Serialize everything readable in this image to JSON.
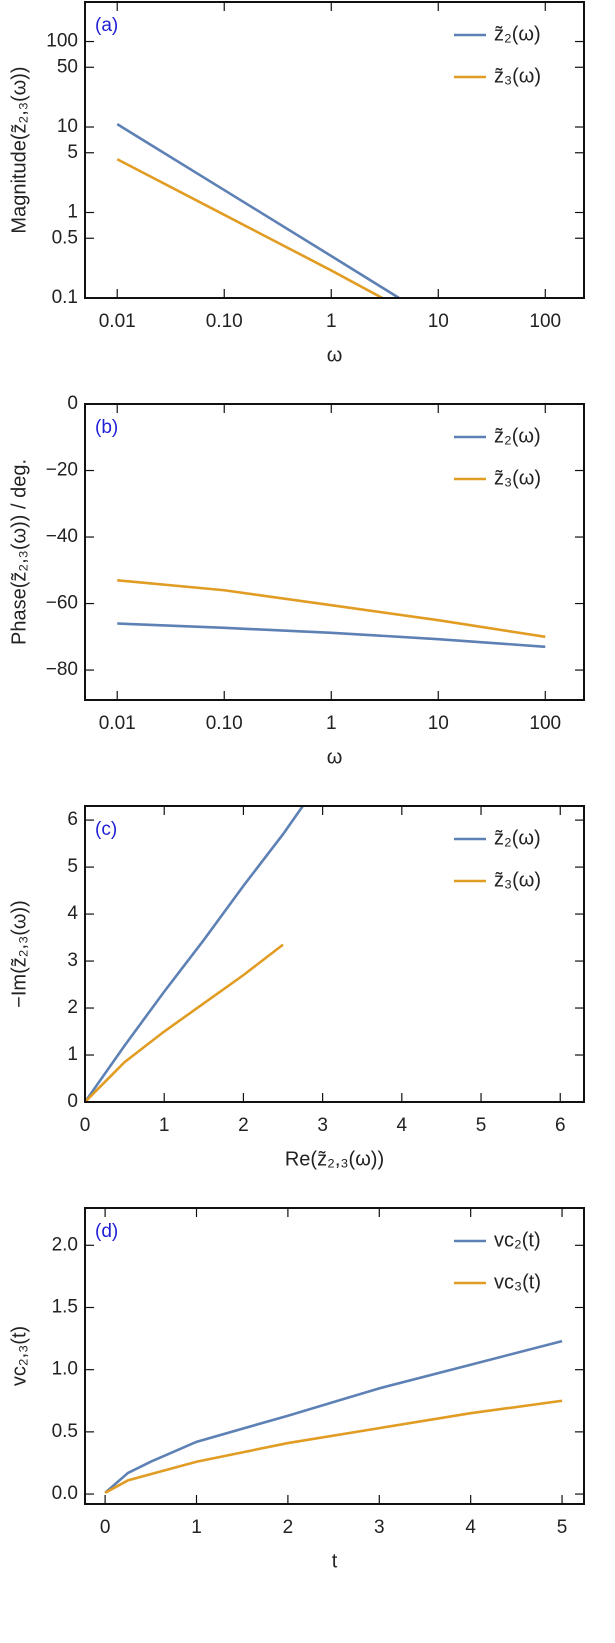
{
  "chart_data": [
    {
      "type": "line",
      "panel_label": "(a)",
      "xlabel": "ω",
      "ylabel": "Magnitude(z̃₂,₃(ω))",
      "xscale": "log",
      "yscale": "log",
      "xlim": [
        0.005,
        230
      ],
      "ylim": [
        0.1,
        290
      ],
      "xticks": [
        0.01,
        {
          "value": 0.1,
          "label": "0.10"
        },
        1,
        10,
        100
      ],
      "yticks": [
        0.1,
        0.5,
        1,
        5,
        10,
        50,
        100
      ],
      "legend": "upper right",
      "series": [
        {
          "name": "z̃₂(ω)",
          "color": "#5e81b5",
          "x": [
            0.01,
            0.1,
            1,
            4.3
          ],
          "values": [
            10.8,
            1.83,
            0.31,
            0.1
          ]
        },
        {
          "name": "z̃₃(ω)",
          "color": "#e19c24",
          "x": [
            0.01,
            0.1,
            1,
            3
          ],
          "values": [
            4.2,
            0.94,
            0.21,
            0.1
          ]
        }
      ]
    },
    {
      "type": "line",
      "panel_label": "(b)",
      "xlabel": "ω",
      "ylabel": "Phase(z̃₂,₃(ω)) / deg.",
      "xscale": "log",
      "yscale": "linear",
      "xlim": [
        0.005,
        230
      ],
      "ylim": [
        -89,
        0
      ],
      "xticks": [
        0.01,
        {
          "value": 0.1,
          "label": "0.10"
        },
        1,
        10,
        100
      ],
      "yticks": [
        {
          "value": -80,
          "label": "−80"
        },
        {
          "value": -60,
          "label": "−60"
        },
        {
          "value": -40,
          "label": "−40"
        },
        {
          "value": -20,
          "label": "−20"
        },
        0
      ],
      "legend": "upper right",
      "series": [
        {
          "name": "z̃₂(ω)",
          "color": "#5e81b5",
          "x": [
            0.01,
            0.1,
            1,
            10,
            100
          ],
          "values": [
            -66,
            -67.3,
            -68.8,
            -70.7,
            -73
          ]
        },
        {
          "name": "z̃₃(ω)",
          "color": "#e19c24",
          "x": [
            0.01,
            0.1,
            1,
            10,
            100
          ],
          "values": [
            -53,
            -56,
            -60.5,
            -65,
            -70
          ]
        }
      ]
    },
    {
      "type": "line",
      "panel_label": "(c)",
      "xlabel": "Re(z̃₂,₃(ω))",
      "ylabel": "−Im(z̃₂,₃(ω))",
      "xscale": "linear",
      "yscale": "linear",
      "xlim": [
        0,
        6.3
      ],
      "ylim": [
        0,
        6.3
      ],
      "xticks": [
        0,
        1,
        2,
        3,
        4,
        5,
        6
      ],
      "yticks": [
        0,
        1,
        2,
        3,
        4,
        5,
        6
      ],
      "legend": "upper right",
      "series": [
        {
          "name": "z̃₂(ω)",
          "color": "#5e81b5",
          "x": [
            0,
            0.5,
            1,
            1.5,
            2,
            2.5,
            2.75
          ],
          "values": [
            0,
            1.2,
            2.35,
            3.45,
            4.6,
            5.7,
            6.3
          ]
        },
        {
          "name": "z̃₃(ω)",
          "color": "#e19c24",
          "x": [
            0,
            0.5,
            1,
            1.5,
            2,
            2.5
          ],
          "values": [
            0,
            0.85,
            1.5,
            2.1,
            2.7,
            3.35
          ]
        }
      ]
    },
    {
      "type": "line",
      "panel_label": "(d)",
      "xlabel": "t",
      "ylabel": "vc₂,₃(t)",
      "xscale": "linear",
      "yscale": "linear",
      "xlim": [
        -0.22,
        5.24
      ],
      "ylim": [
        -0.08,
        2.3
      ],
      "xticks": [
        0,
        1,
        2,
        3,
        4,
        5
      ],
      "yticks": [
        {
          "value": 0,
          "label": "0.0"
        },
        0.5,
        {
          "value": 1,
          "label": "1.0"
        },
        1.5,
        {
          "value": 2,
          "label": "2.0"
        }
      ],
      "legend": "upper right",
      "series": [
        {
          "name": "vc₂(t)",
          "color": "#5e81b5",
          "x": [
            0,
            0.25,
            0.5,
            1,
            2,
            3,
            4,
            5
          ],
          "values": [
            0.01,
            0.17,
            0.26,
            0.42,
            0.63,
            0.85,
            1.04,
            1.23
          ]
        },
        {
          "name": "vc₃(t)",
          "color": "#e19c24",
          "x": [
            0,
            0.25,
            0.5,
            1,
            2,
            3,
            4,
            5
          ],
          "values": [
            0.01,
            0.11,
            0.16,
            0.26,
            0.41,
            0.53,
            0.65,
            0.75
          ]
        }
      ]
    }
  ]
}
